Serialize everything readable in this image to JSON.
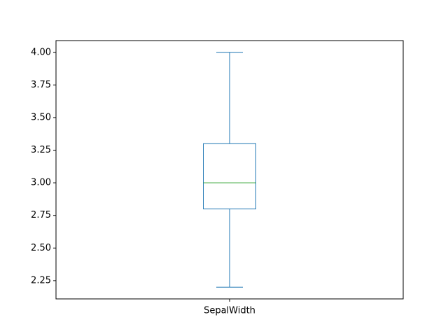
{
  "chart_data": {
    "type": "box",
    "categories": [
      "SepalWidth"
    ],
    "boxes": [
      {
        "label": "SepalWidth",
        "whisker_low": 2.2,
        "q1": 2.8,
        "median": 3.0,
        "q3": 3.3,
        "whisker_high": 4.0
      }
    ],
    "ylim": [
      2.11,
      4.09
    ],
    "yticks": [
      2.25,
      2.5,
      2.75,
      3.0,
      3.25,
      3.5,
      3.75,
      4.0
    ],
    "ytick_labels": [
      "2.25",
      "2.50",
      "2.75",
      "3.00",
      "3.25",
      "3.50",
      "3.75",
      "4.00"
    ],
    "grid": false,
    "colors": {
      "box": "#1f77b4",
      "median": "#2ca02c",
      "axes": "#000000"
    }
  }
}
